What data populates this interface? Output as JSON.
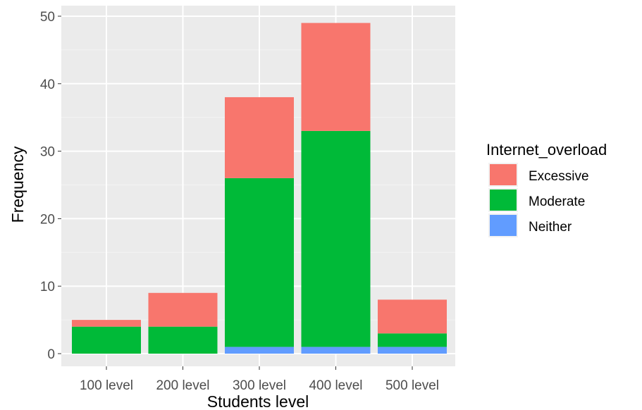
{
  "chart_data": {
    "type": "bar",
    "stacked": true,
    "categories": [
      "100 level",
      "200 level",
      "300 level",
      "400 level",
      "500 level"
    ],
    "series": [
      {
        "name": "Neither",
        "color": "#619CFF",
        "values": [
          0,
          0,
          1,
          1,
          1
        ]
      },
      {
        "name": "Moderate",
        "color": "#00BA38",
        "values": [
          4,
          4,
          25,
          32,
          2
        ]
      },
      {
        "name": "Excessive",
        "color": "#F8766D",
        "values": [
          1,
          5,
          12,
          16,
          5
        ]
      }
    ],
    "xlabel": "Students level",
    "ylabel": "Frequency",
    "ylim": [
      0,
      50
    ],
    "yticks": [
      0,
      10,
      20,
      30,
      40,
      50
    ],
    "grid": true,
    "panel_background": "#EBEBEB",
    "legend": {
      "title": "Internet_overload",
      "position": "right",
      "entries": [
        {
          "label": "Excessive",
          "color": "#F8766D"
        },
        {
          "label": "Moderate",
          "color": "#00BA38"
        },
        {
          "label": "Neither",
          "color": "#619CFF"
        }
      ]
    }
  }
}
